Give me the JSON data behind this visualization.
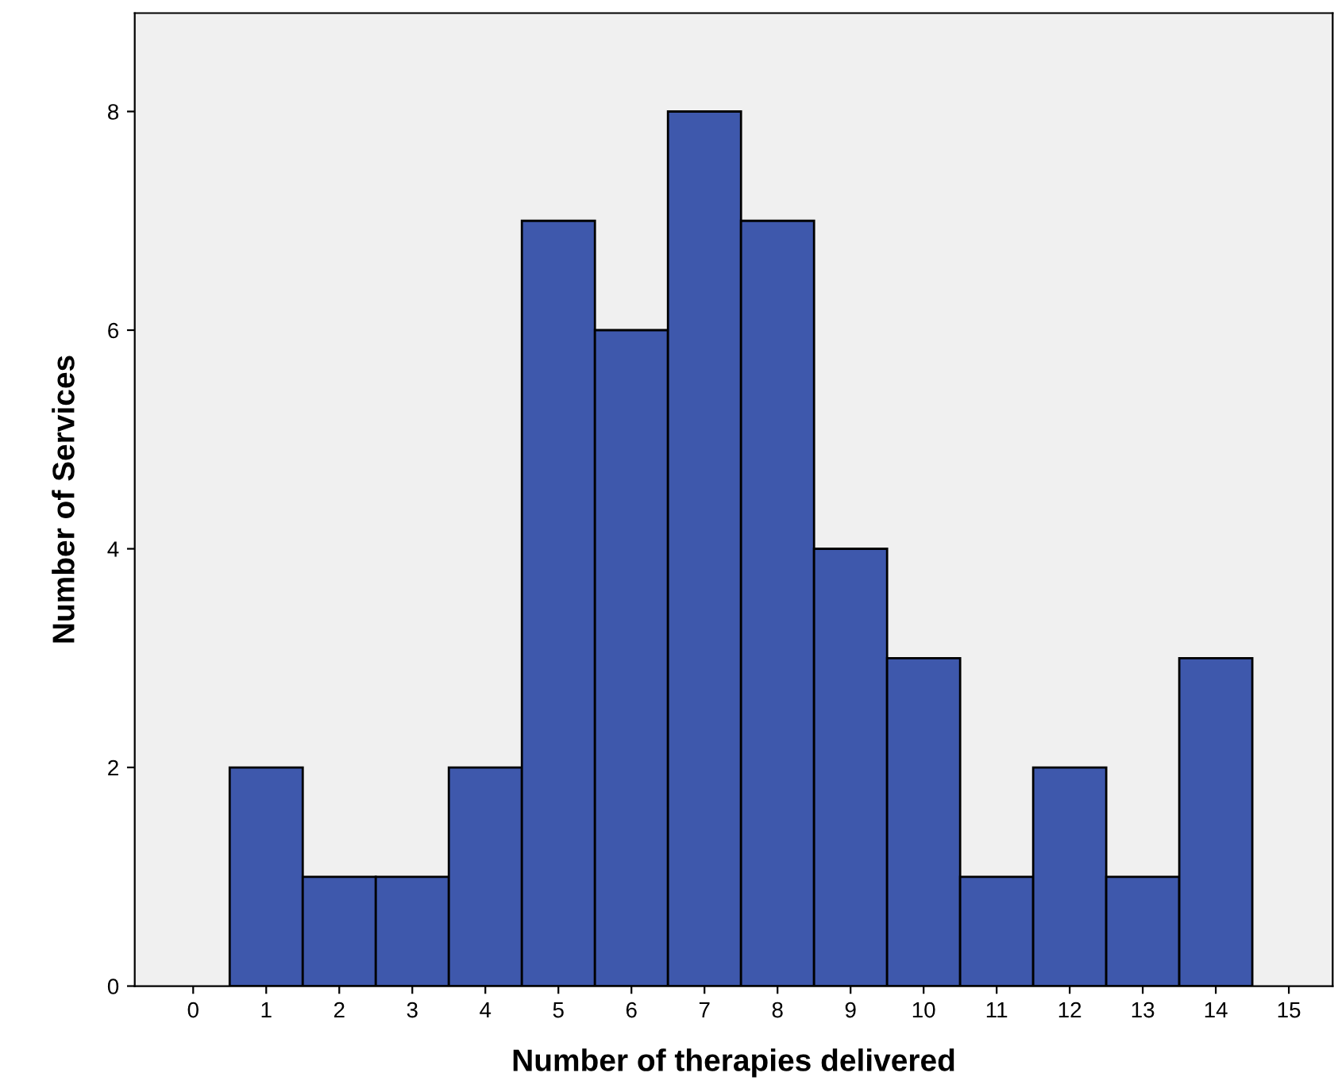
{
  "chart_data": {
    "type": "histogram",
    "xlabel": "Number of therapies delivered",
    "ylabel": "Number of Services",
    "bins": [
      0.5,
      1.5,
      2.5,
      3.5,
      4.5,
      5.5,
      6.5,
      7.5,
      8.5,
      9.5,
      10.5,
      11.5,
      12.5,
      13.5,
      14.5
    ],
    "values": [
      2,
      1,
      1,
      2,
      7,
      6,
      8,
      7,
      4,
      3,
      1,
      2,
      1,
      3
    ],
    "color": "#3e58ac",
    "xlim": [
      -0.8,
      15.6
    ],
    "xticks": [
      0,
      1,
      2,
      3,
      4,
      5,
      6,
      7,
      8,
      9,
      10,
      11,
      12,
      13,
      14,
      15
    ],
    "ylim": [
      0,
      8.9
    ],
    "yticks": [
      0,
      2,
      4,
      6,
      8
    ],
    "grid": false
  }
}
